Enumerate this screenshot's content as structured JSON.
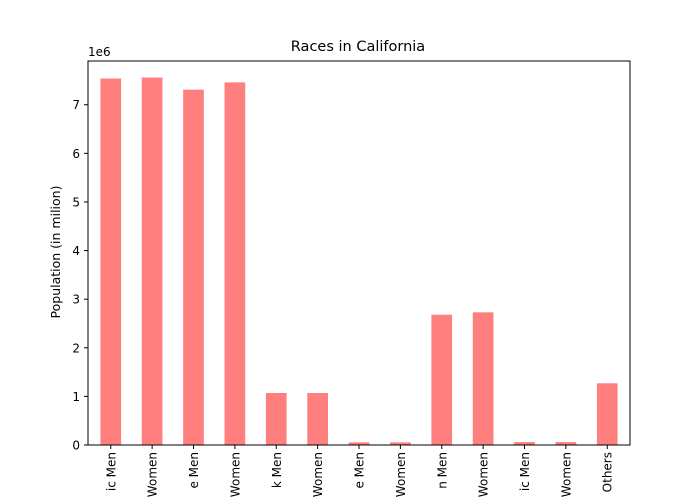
{
  "chart_data": {
    "type": "bar",
    "title": "Races in California",
    "xlabel": "",
    "ylabel": "Population (in milion)",
    "y_offset_text": "1e6",
    "ylim": [
      0,
      7900000
    ],
    "yticks": [
      0,
      1000000,
      2000000,
      3000000,
      4000000,
      5000000,
      6000000,
      7000000
    ],
    "ytick_labels": [
      "0",
      "1",
      "2",
      "3",
      "4",
      "5",
      "6",
      "7"
    ],
    "categories": [
      "ic Men",
      "Women",
      "e Men",
      "Women",
      "k Men",
      "Women",
      "e Men",
      "Women",
      "n Men",
      "Women",
      "ic Men",
      "Women",
      "Others"
    ],
    "values": [
      7540000,
      7560000,
      7310000,
      7460000,
      1070000,
      1070000,
      55000,
      55000,
      2680000,
      2730000,
      60000,
      60000,
      1270000
    ],
    "bar_color": "#ff7f7f",
    "grid": false,
    "legend": "none"
  }
}
